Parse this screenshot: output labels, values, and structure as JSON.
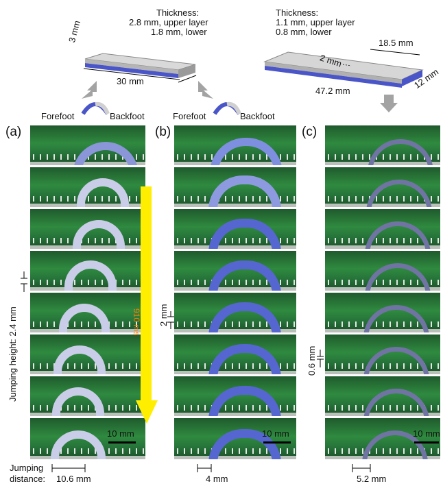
{
  "specimen_a": {
    "thickness_title": "Thickness:",
    "upper": "2.8 mm, upper layer",
    "lower": "1.8 mm, lower",
    "width": "3 mm",
    "length": "30 mm"
  },
  "specimen_c": {
    "thickness_title": "Thickness:",
    "upper": "1.1 mm, upper layer",
    "lower": "0.8 mm, lower",
    "gap": "2 mm",
    "segment": "18.5 mm",
    "length": "47.2 mm",
    "width": "12 mm"
  },
  "foot_labels": {
    "fore": "Forefoot",
    "back": "Backfoot"
  },
  "panels": {
    "a": {
      "label": "(a)",
      "jump_height": "Jumping height: 2.4 mm",
      "duration": "910 ms",
      "scale": "10 mm",
      "jump_label_1": "Jumping",
      "jump_label_2": "distance:",
      "jump_distance": "10.6 mm"
    },
    "b": {
      "label": "(b)",
      "height": "2 mm",
      "scale": "10 mm",
      "distance": "4 mm"
    },
    "c": {
      "label": "(c)",
      "height": "0.6 mm",
      "scale": "10 mm",
      "distance": "5.2 mm"
    }
  },
  "colors": {
    "arrow_yellow": "#ffee00",
    "arrow_text": "#ff7a00",
    "arch_blue": "#4a55c8",
    "arch_gray": "#7a7fa6"
  }
}
